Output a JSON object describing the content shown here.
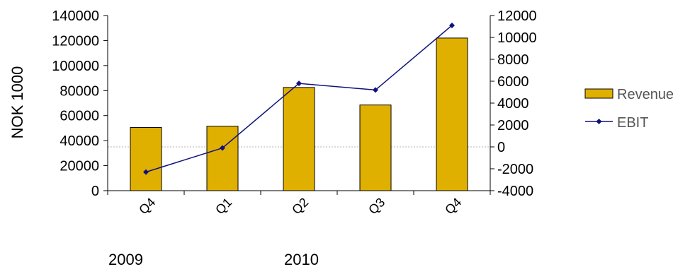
{
  "chart_data": {
    "type": "bar",
    "categories": [
      "Q4",
      "Q1",
      "Q2",
      "Q3",
      "Q4"
    ],
    "year_labels": [
      "2009",
      "2010"
    ],
    "ylabel": "NOK 1000",
    "y_left": {
      "min": 0,
      "max": 140000,
      "step": 20000
    },
    "y_right": {
      "min": -4000,
      "max": 12000,
      "step": 2000
    },
    "series": [
      {
        "name": "Revenue",
        "type": "bar",
        "axis": "left",
        "values": [
          50500,
          51500,
          82500,
          68500,
          122000
        ]
      },
      {
        "name": "EBIT",
        "type": "line",
        "axis": "right",
        "values": [
          -2300,
          -100,
          5800,
          5200,
          11100
        ]
      }
    ],
    "legend_position": "right",
    "grid": false,
    "colors": {
      "bar_fill": "#E0B000",
      "bar_stroke": "#000000",
      "line": "#101080",
      "zero_line": "#b4b4b4",
      "axis": "#000000"
    }
  }
}
